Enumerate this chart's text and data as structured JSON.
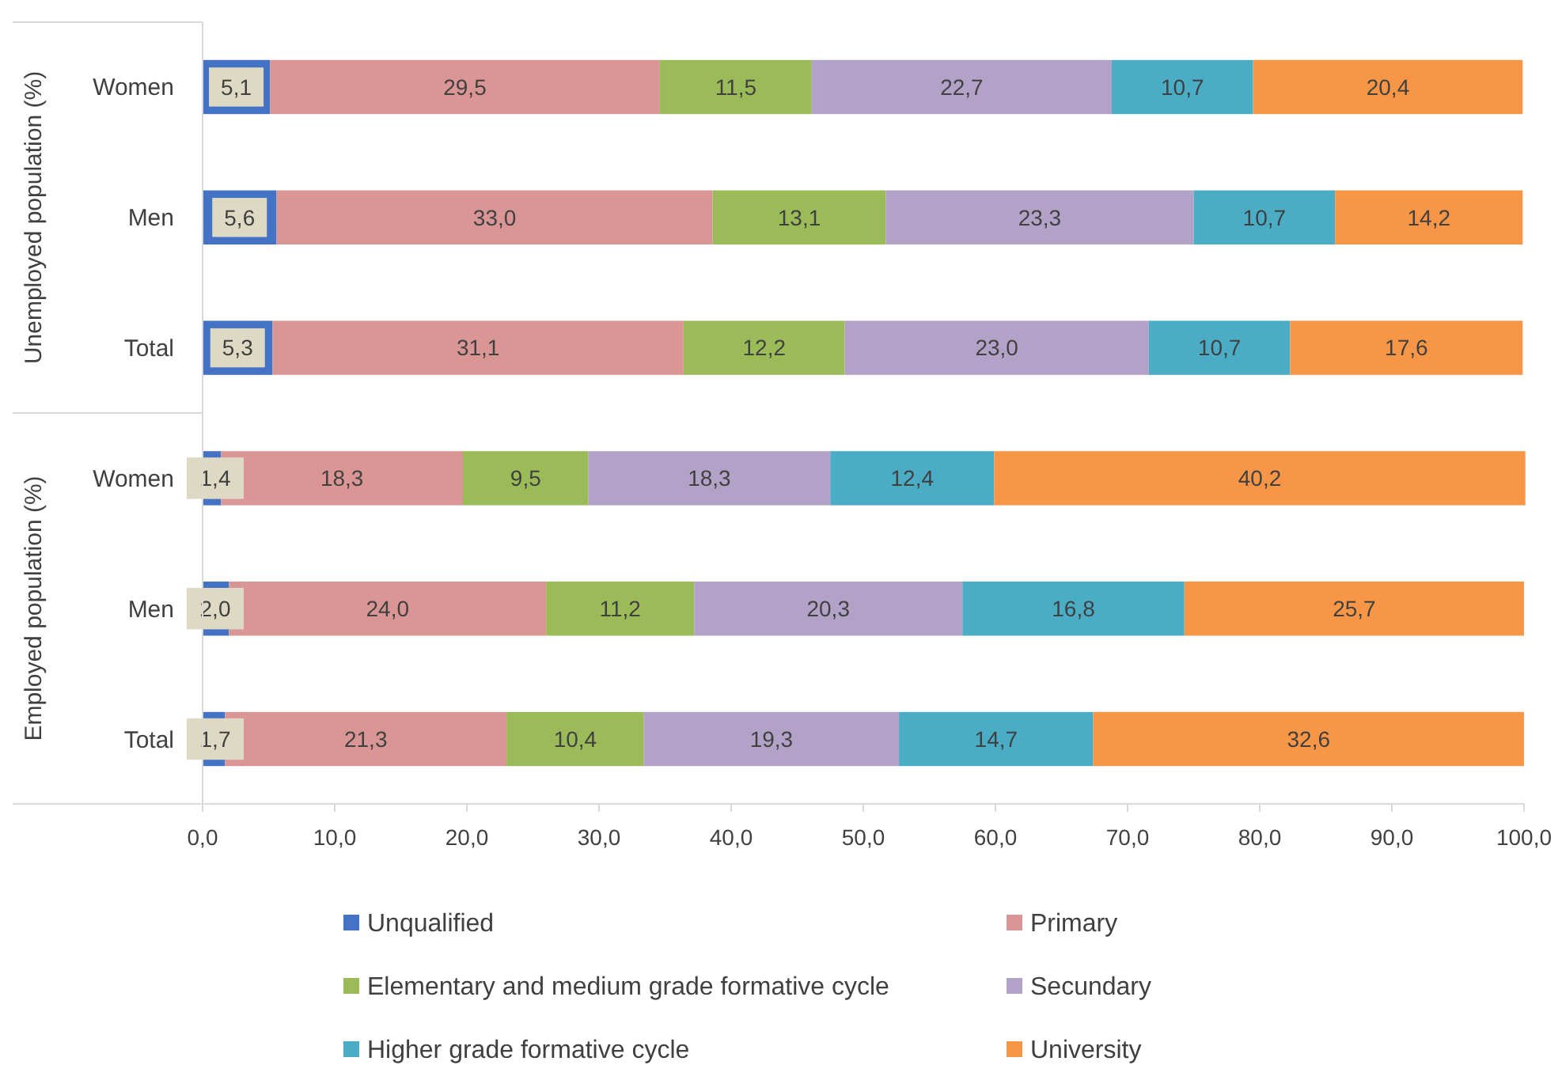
{
  "chart_data": {
    "type": "bar",
    "orientation": "horizontal",
    "stacked": true,
    "categories": [
      "Women",
      "Men",
      "Total",
      "Women",
      "Men",
      "Total"
    ],
    "annotations": [
      "Unemployed population (%)",
      "Employed population (%)"
    ],
    "series": [
      {
        "name": "Unqualified",
        "color": "#4472c4",
        "values": [
          5.1,
          5.6,
          5.3,
          1.4,
          2.0,
          1.7
        ],
        "value_labels": [
          "5,1",
          "5,6",
          "5,3",
          "1,4",
          "2,0",
          "1,7"
        ]
      },
      {
        "name": "Primary",
        "color": "#d99694",
        "values": [
          29.5,
          33.0,
          31.1,
          18.3,
          24.0,
          21.3
        ],
        "value_labels": [
          "29,5",
          "33,0",
          "31,1",
          "18,3",
          "24,0",
          "21,3"
        ]
      },
      {
        "name": "Elementary and medium grade formative cycle",
        "color": "#9bbb59",
        "values": [
          11.5,
          13.1,
          12.2,
          9.5,
          11.2,
          10.4
        ],
        "value_labels": [
          "11,5",
          "13,1",
          "12,2",
          "9,5",
          "11,2",
          "10,4"
        ]
      },
      {
        "name": "Secundary",
        "color": "#b3a2c7",
        "values": [
          22.7,
          23.3,
          23.0,
          18.3,
          20.3,
          19.3
        ],
        "value_labels": [
          "22,7",
          "23,3",
          "23,0",
          "18,3",
          "20,3",
          "19,3"
        ]
      },
      {
        "name": "Higher grade formative cycle",
        "color": "#4bacc6",
        "values": [
          10.7,
          10.7,
          10.7,
          12.4,
          16.8,
          14.7
        ],
        "value_labels": [
          "10,7",
          "10,7",
          "10,7",
          "12,4",
          "16,8",
          "14,7"
        ]
      },
      {
        "name": "University",
        "color": "#f79646",
        "values": [
          20.4,
          14.2,
          17.6,
          40.2,
          25.7,
          32.6
        ],
        "value_labels": [
          "20,4",
          "14,2",
          "17,6",
          "40,2",
          "25,7",
          "32,6"
        ]
      }
    ],
    "xlim": [
      0,
      100
    ],
    "xticks": [
      {
        "value": 0,
        "label": "0,0"
      },
      {
        "value": 10,
        "label": "10,0"
      },
      {
        "value": 20,
        "label": "20,0"
      },
      {
        "value": 30,
        "label": "30,0"
      },
      {
        "value": 40,
        "label": "40,0"
      },
      {
        "value": 50,
        "label": "50,0"
      },
      {
        "value": 60,
        "label": "60,0"
      },
      {
        "value": 70,
        "label": "70,0"
      },
      {
        "value": 80,
        "label": "80,0"
      },
      {
        "value": 90,
        "label": "90,0"
      },
      {
        "value": 100,
        "label": "100,0"
      }
    ],
    "grid": false,
    "legend": "bottom"
  }
}
